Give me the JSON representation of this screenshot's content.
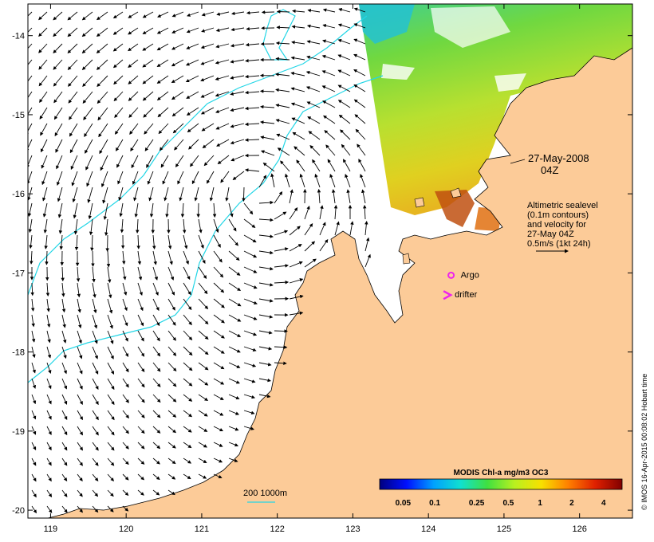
{
  "map": {
    "type": "ocean-colour-map",
    "x_axis": {
      "min": 118.7,
      "max": 126.7,
      "ticks": [
        119,
        120,
        121,
        122,
        123,
        124,
        125,
        126
      ]
    },
    "y_axis": {
      "min": -20.1,
      "max": -13.6,
      "ticks": [
        -14,
        -15,
        -16,
        -17,
        -18,
        -19,
        -20
      ]
    },
    "land_color": "#fccb98",
    "contour_color": "#22d6e6",
    "date_label_line1": "27-May-2008",
    "date_label_line2": "04Z",
    "velocity_note": [
      "Altimetric sealevel",
      "(0.1m contours)",
      "and velocity for",
      "27-May 04Z",
      "0.5m/s (1kt 24h)"
    ],
    "argo_label": "Argo",
    "argo_position": [
      124.3,
      -17.03
    ],
    "argo_color": "#ee22ee",
    "drifter_label": "drifter",
    "drifter_position": [
      124.2,
      -17.28
    ],
    "scale_bar_label": "200  1000m",
    "colorbar": {
      "title": "MODIS Chl-a mg/m3 OC3",
      "tick_labels": [
        "0.05",
        "0.1",
        "0.25",
        "0.5",
        "1",
        "2",
        "4"
      ],
      "colors": [
        "#00007f",
        "#0010ff",
        "#00a0ff",
        "#10e0d0",
        "#40e040",
        "#b8f020",
        "#f8e000",
        "#ff8000",
        "#e02000",
        "#800000"
      ]
    },
    "credit": "© IMOS 16-Apr-2015 00:08:02 Hobart time"
  }
}
